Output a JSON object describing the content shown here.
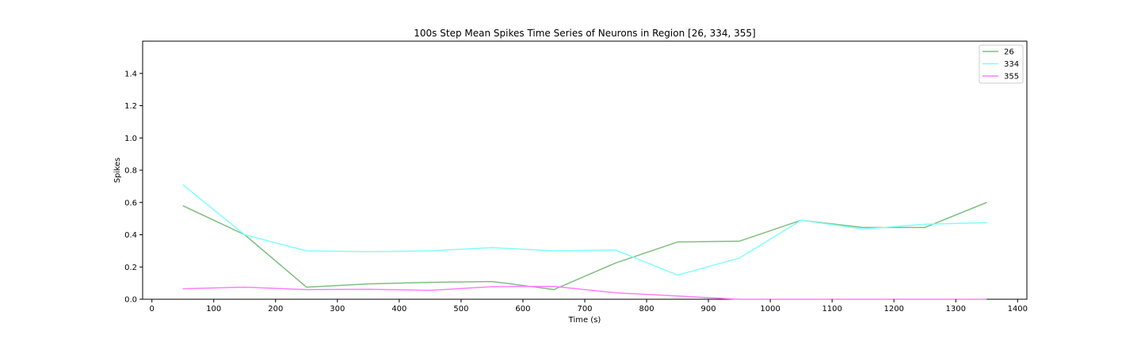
{
  "chart_data": {
    "type": "line",
    "title": "100s Step Mean Spikes Time Series of Neurons in Region [26, 334, 355]",
    "xlabel": "Time (s)",
    "ylabel": "Spikes",
    "xlim": [
      -15,
      1415
    ],
    "ylim": [
      0,
      1.6
    ],
    "xticks": [
      0,
      100,
      200,
      300,
      400,
      500,
      600,
      700,
      800,
      900,
      1000,
      1100,
      1200,
      1300,
      1400
    ],
    "yticks": [
      0.0,
      0.2,
      0.4,
      0.6,
      0.8,
      1.0,
      1.2,
      1.4
    ],
    "ytick_labels": [
      "0.0",
      "0.2",
      "0.4",
      "0.6",
      "0.8",
      "1.0",
      "1.2",
      "1.4"
    ],
    "grid": false,
    "legend_position": "top-right",
    "x": [
      50,
      150,
      250,
      350,
      450,
      550,
      650,
      750,
      850,
      950,
      1050,
      1150,
      1250,
      1350
    ],
    "series": [
      {
        "name": "26",
        "color": "#7fbf7f",
        "values": [
          0.58,
          0.4,
          0.075,
          0.095,
          0.105,
          0.11,
          0.06,
          0.225,
          0.355,
          0.36,
          0.49,
          0.445,
          0.445,
          0.6
        ]
      },
      {
        "name": "334",
        "color": "#7fffff",
        "values": [
          0.71,
          0.4,
          0.3,
          0.295,
          0.3,
          0.32,
          0.3,
          0.305,
          0.15,
          0.255,
          0.49,
          0.435,
          0.465,
          0.475
        ]
      },
      {
        "name": "355",
        "color": "#ff7fff",
        "values": [
          0.065,
          0.075,
          0.06,
          0.062,
          0.055,
          0.078,
          0.08,
          0.04,
          0.02,
          0.0,
          0.0,
          0.0,
          0.0,
          0.0
        ]
      }
    ]
  }
}
